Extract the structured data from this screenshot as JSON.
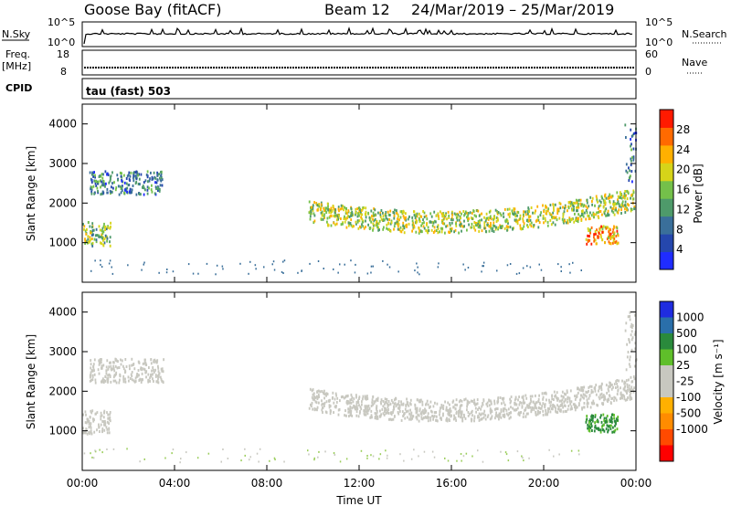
{
  "header": {
    "station": "Goose Bay (fitACF)",
    "beam": "Beam 12",
    "dates": "24/Mar/2019 – 25/Mar/2019"
  },
  "top_panels": {
    "nsky": {
      "left_label": "N.Sky",
      "left_ticks": [
        "10^5",
        "10^0"
      ],
      "right_ticks": [
        "10^5",
        "10^0"
      ],
      "right_label": "N.Search"
    },
    "freq": {
      "left_label_1": "Freq.",
      "left_label_2": "[MHz]",
      "left_ticks": [
        "18",
        "8"
      ],
      "right_ticks": [
        "60",
        "0"
      ],
      "right_label": "Nave"
    },
    "cpid": {
      "label": "CPID",
      "value": "tau (fast) 503"
    }
  },
  "colors": {
    "power": [
      "#1f2cff",
      "#2547ad",
      "#3a6f9a",
      "#4e9a6a",
      "#74c04a",
      "#d6d419",
      "#ffb000",
      "#ff6a00",
      "#ff1a00"
    ],
    "velocity_gray": "#c8c8c0",
    "velocity": [
      "#ff0000",
      "#ff4a00",
      "#ff8c00",
      "#ffb000",
      "#c8c8c0",
      "#c8c8c0",
      "#5fbf2a",
      "#2a8a3c",
      "#2a6faa",
      "#1f2ce0"
    ]
  },
  "chart_data": [
    {
      "type": "heatmap",
      "panel": "power",
      "title": "",
      "xlabel": "",
      "ylabel": "Slant Range [km]",
      "xlim": [
        "00:00",
        "00:00"
      ],
      "x_ticks": [
        "00:00",
        "04:00",
        "08:00",
        "12:00",
        "16:00",
        "20:00",
        "00:00"
      ],
      "ylim": [
        0,
        4500
      ],
      "y_ticks": [
        1000,
        2000,
        3000,
        4000
      ],
      "colorbar": {
        "label": "Power [dB]",
        "ticks": [
          4,
          8,
          12,
          16,
          20,
          24,
          28
        ],
        "range": [
          0,
          32
        ]
      },
      "echo_regions": [
        {
          "t_start": 0.3,
          "t_end": 3.5,
          "range_low": 2200,
          "range_high": 2800,
          "value": 10
        },
        {
          "t_start": 0.0,
          "t_end": 1.2,
          "range_low": 900,
          "range_high": 1500,
          "value": 16
        },
        {
          "t_start": 9.8,
          "t_end": 23.9,
          "range_low": 1200,
          "range_high": 2300,
          "value": 18
        },
        {
          "t_start": 21.8,
          "t_end": 23.2,
          "range_low": 950,
          "range_high": 1400,
          "value": 24
        },
        {
          "t_start": 23.5,
          "t_end": 24.0,
          "range_low": 2500,
          "range_high": 4000,
          "value": 8
        }
      ]
    },
    {
      "type": "heatmap",
      "panel": "velocity",
      "title": "",
      "xlabel": "Time UT",
      "ylabel": "Slant Range [km]",
      "xlim": [
        "00:00",
        "00:00"
      ],
      "x_ticks": [
        "00:00",
        "04:00",
        "08:00",
        "12:00",
        "16:00",
        "20:00",
        "00:00"
      ],
      "ylim": [
        0,
        4500
      ],
      "y_ticks": [
        1000,
        2000,
        3000,
        4000
      ],
      "colorbar": {
        "label": "Velocity [m s⁻¹]",
        "ticks": [
          1000,
          500,
          100,
          25,
          -25,
          -100,
          -500,
          -1000
        ]
      },
      "echo_regions": [
        {
          "t_start": 0.3,
          "t_end": 3.5,
          "range_low": 2200,
          "range_high": 2800,
          "value": 0
        },
        {
          "t_start": 0.0,
          "t_end": 1.2,
          "range_low": 900,
          "range_high": 1500,
          "value": 0
        },
        {
          "t_start": 9.8,
          "t_end": 23.9,
          "range_low": 1200,
          "range_high": 2300,
          "value": 0
        },
        {
          "t_start": 21.8,
          "t_end": 23.2,
          "range_low": 950,
          "range_high": 1400,
          "value": 150
        },
        {
          "t_start": 23.5,
          "t_end": 24.0,
          "range_low": 2500,
          "range_high": 4000,
          "value": 0
        }
      ]
    }
  ]
}
